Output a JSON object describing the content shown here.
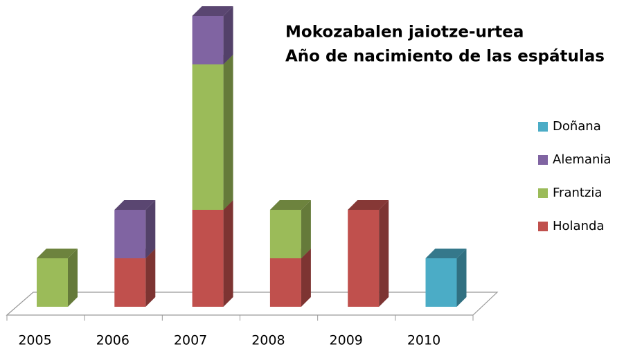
{
  "chart_data": {
    "type": "bar3d_stacked",
    "title": [
      "Mokozabalen jaiotze-urtea",
      "Año de nacimiento de las espátulas"
    ],
    "categories": [
      "2005",
      "2006",
      "2007",
      "2008",
      "2009",
      "2010"
    ],
    "series": [
      {
        "name": "Holanda",
        "color": "#c0504d",
        "values": [
          null,
          1,
          2,
          1,
          2,
          null
        ]
      },
      {
        "name": "Frantzia",
        "color": "#9bbb59",
        "values": [
          1,
          null,
          3,
          1,
          null,
          null
        ]
      },
      {
        "name": "Alemania",
        "color": "#8064a2",
        "values": [
          null,
          1,
          1,
          null,
          null,
          null
        ]
      },
      {
        "name": "Doñana",
        "color": "#4bacc6",
        "values": [
          null,
          null,
          null,
          null,
          null,
          1
        ]
      }
    ],
    "legend": "right"
  }
}
